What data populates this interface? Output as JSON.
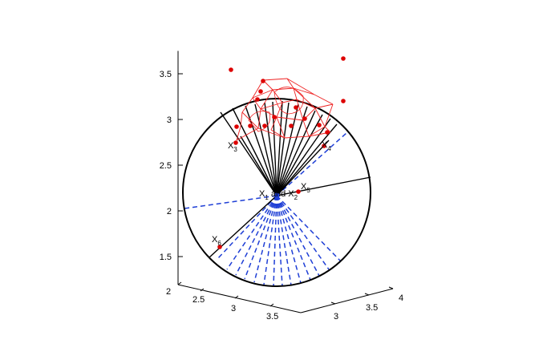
{
  "chart_data": {
    "type": "scatter",
    "projection": "3d-view",
    "title": "",
    "xlabel": "",
    "ylabel": "",
    "zlabel": "",
    "axes": {
      "z": {
        "ticks": [
          "1.5",
          "2",
          "2.5",
          "3",
          "3.5"
        ],
        "lim": [
          1.35,
          3.75
        ]
      },
      "x": {
        "ticks": [
          "2",
          "2.5",
          "3",
          "3.5"
        ]
      },
      "y": {
        "ticks": [
          "3",
          "3.5",
          "4"
        ]
      }
    },
    "grid": false,
    "legend": "none",
    "colors": {
      "axes": "#000000",
      "circle": "#000000",
      "solid_rays": "#000000",
      "dashed_rays": "#1f3fd6",
      "polytope_mesh": "#ee2222",
      "points": "#dd0000"
    },
    "labels": [
      {
        "text": "X",
        "sub": "3"
      },
      {
        "text": "X",
        "sub": "4"
      },
      {
        "text": "X",
        "sub": "5"
      },
      {
        "text": "X",
        "sub": "6"
      },
      {
        "text": "X",
        "sub": "1",
        "suffix": " and X",
        "sub2": "2"
      }
    ],
    "outlier_points": [
      {
        "x": 3.3,
        "y": 3.2,
        "z": 3.56
      },
      {
        "x": 3.9,
        "y": 3.9,
        "z": 3.67
      },
      {
        "x": 3.9,
        "y": 3.9,
        "z": 3.2
      }
    ]
  }
}
